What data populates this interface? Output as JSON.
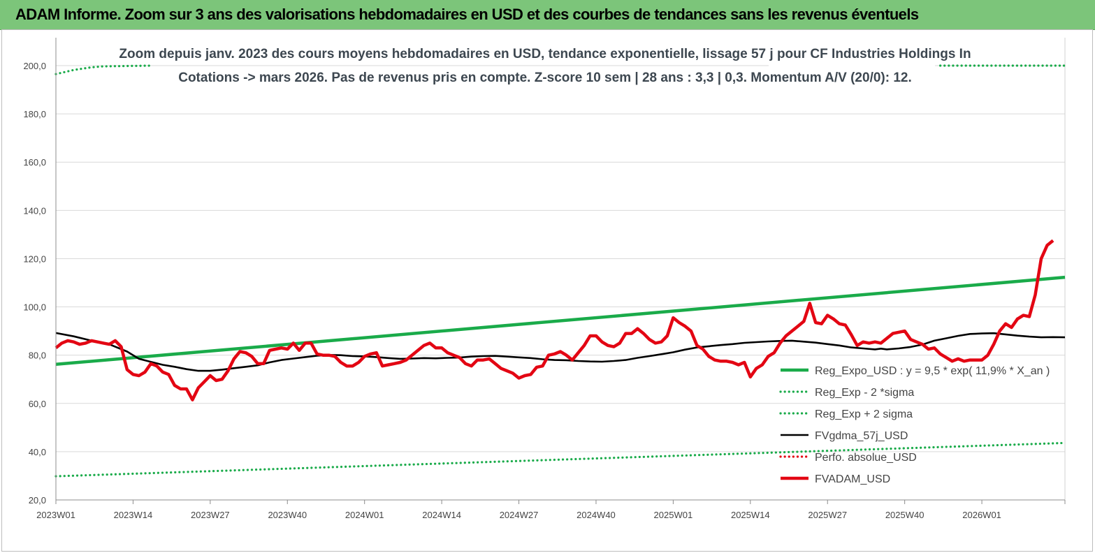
{
  "banner": {
    "title": "ADAM Informe. Zoom sur 3 ans des valorisations hebdomadaires en USD et des courbes de tendances sans les revenus éventuels"
  },
  "colors": {
    "banner_bg": "#7cc57a",
    "reg_expo": "#1aab4a",
    "bands": "#1aab4a",
    "fvgdma": "#000000",
    "perfo": "#e30613",
    "fvadam": "#e30613"
  },
  "chart_data": {
    "type": "line",
    "title": [
      "Zoom depuis janv. 2023 des cours moyens hebdomadaires en USD, tendance exponentielle, lissage 57 j pour CF Industries Holdings In",
      "Cotations -> mars 2026. Pas de revenus pris en compte. Z-score 10 sem | 28 ans : 3,3 | 0,3. Momentum A/V (20/0): 12."
    ],
    "y_ticks": [
      "20,0",
      "40,0",
      "60,0",
      "80,0",
      "100,0",
      "120,0",
      "140,0",
      "160,0",
      "180,0",
      "200,0"
    ],
    "ylim": [
      20,
      200
    ],
    "x_ticks": [
      "2023W01",
      "2023W14",
      "2023W27",
      "2023W40",
      "2024W01",
      "2024W14",
      "2024W27",
      "2024W40",
      "2025W01",
      "2025W14",
      "2025W27",
      "2025W40",
      "2026W01"
    ],
    "x_tick_week_index": [
      0,
      13,
      26,
      39,
      52,
      65,
      78,
      91,
      104,
      117,
      130,
      143,
      156
    ],
    "week_count": 171,
    "grid": "horizontal",
    "legend_position": "bottom-right",
    "series": [
      {
        "name": "Reg_Expo_USD : y = 9,5 * exp( 11,9% *  X_an )",
        "style": "thick-solid",
        "color": "#1aab4a",
        "points": [
          [
            0,
            76.2
          ],
          [
            170,
            112.3
          ]
        ]
      },
      {
        "name": "Reg_Exp - 2 *sigma",
        "style": "dotted",
        "color": "#1aab4a",
        "points": [
          [
            0,
            29.8
          ],
          [
            170,
            43.6
          ]
        ]
      },
      {
        "name": "Reg_Exp + 2 sigma",
        "style": "dotted",
        "color": "#1aab4a",
        "points": [
          [
            0,
            196.5
          ],
          [
            3,
            198.2
          ],
          [
            6,
            199.3
          ],
          [
            8,
            199.7
          ],
          [
            16,
            200
          ]
        ],
        "points_right": [
          [
            149,
            200
          ],
          [
            170,
            200
          ]
        ]
      },
      {
        "name": "FVgdma_57j_USD",
        "style": "solid",
        "color": "#000000",
        "points": [
          [
            0,
            89.2
          ],
          [
            3,
            87.8
          ],
          [
            6,
            86
          ],
          [
            9,
            84.5
          ],
          [
            12,
            81.5
          ],
          [
            14,
            78.5
          ],
          [
            16,
            77.2
          ],
          [
            18,
            76
          ],
          [
            20,
            75.2
          ],
          [
            22,
            74.2
          ],
          [
            24,
            73.5
          ],
          [
            26,
            73.5
          ],
          [
            28,
            74
          ],
          [
            30,
            74.6
          ],
          [
            32,
            75.2
          ],
          [
            34,
            75.8
          ],
          [
            36,
            77
          ],
          [
            38,
            78
          ],
          [
            40,
            78.6
          ],
          [
            42,
            79.2
          ],
          [
            44,
            79.8
          ],
          [
            46,
            80.1
          ],
          [
            48,
            80
          ],
          [
            50,
            79.6
          ],
          [
            52,
            79.5
          ],
          [
            54,
            79.2
          ],
          [
            56,
            78.8
          ],
          [
            58,
            78.5
          ],
          [
            60,
            78.6
          ],
          [
            62,
            78.8
          ],
          [
            64,
            78.7
          ],
          [
            66,
            78.9
          ],
          [
            68,
            79
          ],
          [
            70,
            79.4
          ],
          [
            72,
            79.6
          ],
          [
            74,
            79.7
          ],
          [
            76,
            79.4
          ],
          [
            78,
            79.1
          ],
          [
            80,
            78.8
          ],
          [
            82,
            78.3
          ],
          [
            84,
            78
          ],
          [
            86,
            77.9
          ],
          [
            88,
            77.6
          ],
          [
            90,
            77.4
          ],
          [
            92,
            77.3
          ],
          [
            94,
            77.6
          ],
          [
            96,
            78
          ],
          [
            98,
            78.9
          ],
          [
            100,
            79.6
          ],
          [
            102,
            80.4
          ],
          [
            104,
            81.2
          ],
          [
            106,
            82.3
          ],
          [
            108,
            83.2
          ],
          [
            110,
            83.7
          ],
          [
            112,
            84.2
          ],
          [
            114,
            84.6
          ],
          [
            116,
            85.1
          ],
          [
            118,
            85.4
          ],
          [
            120,
            85.7
          ],
          [
            122,
            85.9
          ],
          [
            124,
            86
          ],
          [
            126,
            85.6
          ],
          [
            128,
            85.2
          ],
          [
            130,
            84.6
          ],
          [
            132,
            84
          ],
          [
            134,
            83.2
          ],
          [
            136,
            82.8
          ],
          [
            138,
            82.4
          ],
          [
            139,
            82.7
          ],
          [
            140,
            82.4
          ],
          [
            142,
            82.8
          ],
          [
            144,
            83.4
          ],
          [
            146,
            84.4
          ],
          [
            148,
            86
          ],
          [
            150,
            87
          ],
          [
            152,
            88
          ],
          [
            154,
            88.8
          ],
          [
            156,
            89
          ],
          [
            158,
            89.1
          ],
          [
            160,
            88.6
          ],
          [
            162,
            88.1
          ],
          [
            164,
            87.7
          ],
          [
            166,
            87.4
          ],
          [
            168,
            87.5
          ],
          [
            170,
            87.4
          ]
        ]
      },
      {
        "name": "Perfo. absolue_USD",
        "style": "dotted",
        "color": "#e30613",
        "points": []
      },
      {
        "name": "FVADAM_USD",
        "style": "thick-solid",
        "color": "#e30613",
        "points": [
          [
            0,
            83
          ],
          [
            1,
            85
          ],
          [
            2,
            86
          ],
          [
            3,
            85.5
          ],
          [
            4,
            84.5
          ],
          [
            5,
            85
          ],
          [
            6,
            86
          ],
          [
            7,
            85.5
          ],
          [
            8,
            85
          ],
          [
            9,
            84.5
          ],
          [
            10,
            86
          ],
          [
            11,
            83.5
          ],
          [
            12,
            74
          ],
          [
            13,
            72
          ],
          [
            14,
            71.5
          ],
          [
            15,
            73
          ],
          [
            16,
            76.5
          ],
          [
            17,
            75.5
          ],
          [
            18,
            73
          ],
          [
            19,
            72
          ],
          [
            20,
            67.5
          ],
          [
            21,
            66
          ],
          [
            22,
            66
          ],
          [
            23,
            61.5
          ],
          [
            24,
            66.5
          ],
          [
            25,
            69
          ],
          [
            26,
            71.5
          ],
          [
            27,
            69.5
          ],
          [
            28,
            70
          ],
          [
            29,
            73.5
          ],
          [
            30,
            78.5
          ],
          [
            31,
            81.5
          ],
          [
            32,
            81
          ],
          [
            33,
            79.5
          ],
          [
            34,
            76.5
          ],
          [
            35,
            76.5
          ],
          [
            36,
            82
          ],
          [
            37,
            82.5
          ],
          [
            38,
            83
          ],
          [
            39,
            82.5
          ],
          [
            40,
            85
          ],
          [
            41,
            82
          ],
          [
            42,
            85
          ],
          [
            43,
            85
          ],
          [
            44,
            80.5
          ],
          [
            45,
            80
          ],
          [
            46,
            80
          ],
          [
            47,
            79.5
          ],
          [
            48,
            77
          ],
          [
            49,
            75.5
          ],
          [
            50,
            75.5
          ],
          [
            51,
            77
          ],
          [
            52,
            79.5
          ],
          [
            53,
            80.5
          ],
          [
            54,
            81
          ],
          [
            55,
            75.5
          ],
          [
            56,
            76
          ],
          [
            57,
            76.5
          ],
          [
            58,
            77
          ],
          [
            59,
            78
          ],
          [
            60,
            80
          ],
          [
            61,
            82
          ],
          [
            62,
            84
          ],
          [
            63,
            85
          ],
          [
            64,
            83
          ],
          [
            65,
            83
          ],
          [
            66,
            81
          ],
          [
            67,
            80
          ],
          [
            68,
            79
          ],
          [
            69,
            76.5
          ],
          [
            70,
            75.5
          ],
          [
            71,
            78
          ],
          [
            72,
            78
          ],
          [
            73,
            78.5
          ],
          [
            74,
            76.5
          ],
          [
            75,
            74.5
          ],
          [
            76,
            73.5
          ],
          [
            77,
            72.5
          ],
          [
            78,
            70.5
          ],
          [
            79,
            71.5
          ],
          [
            80,
            72
          ],
          [
            81,
            75
          ],
          [
            82,
            75.5
          ],
          [
            83,
            80
          ],
          [
            84,
            80.5
          ],
          [
            85,
            81.5
          ],
          [
            86,
            80
          ],
          [
            87,
            78
          ],
          [
            88,
            81
          ],
          [
            89,
            84
          ],
          [
            90,
            88
          ],
          [
            91,
            88
          ],
          [
            92,
            85.5
          ],
          [
            93,
            84
          ],
          [
            94,
            83.5
          ],
          [
            95,
            85
          ],
          [
            96,
            89
          ],
          [
            97,
            89
          ],
          [
            98,
            91
          ],
          [
            99,
            89
          ],
          [
            100,
            86.5
          ],
          [
            101,
            85
          ],
          [
            102,
            85.5
          ],
          [
            103,
            88
          ],
          [
            104,
            95.5
          ],
          [
            105,
            93.5
          ],
          [
            106,
            92
          ],
          [
            107,
            90
          ],
          [
            108,
            84
          ],
          [
            109,
            82.5
          ],
          [
            110,
            79.5
          ],
          [
            111,
            78
          ],
          [
            112,
            77.5
          ],
          [
            113,
            77.5
          ],
          [
            114,
            77
          ],
          [
            115,
            76
          ],
          [
            116,
            77
          ],
          [
            117,
            71
          ],
          [
            118,
            74.5
          ],
          [
            119,
            76
          ],
          [
            120,
            79.5
          ],
          [
            121,
            81
          ],
          [
            122,
            85
          ],
          [
            123,
            88
          ],
          [
            124,
            90
          ],
          [
            125,
            92
          ],
          [
            126,
            94
          ],
          [
            127,
            101.5
          ],
          [
            128,
            93.5
          ],
          [
            129,
            93
          ],
          [
            130,
            96.5
          ],
          [
            131,
            95
          ],
          [
            132,
            93
          ],
          [
            133,
            92.5
          ],
          [
            134,
            88.5
          ],
          [
            135,
            84
          ],
          [
            136,
            85.5
          ],
          [
            137,
            85
          ],
          [
            138,
            85.5
          ],
          [
            139,
            85
          ],
          [
            140,
            87
          ],
          [
            141,
            89
          ],
          [
            142,
            89.5
          ],
          [
            143,
            90
          ],
          [
            144,
            86.5
          ],
          [
            145,
            85.5
          ],
          [
            146,
            84.5
          ],
          [
            147,
            82.5
          ],
          [
            148,
            83
          ],
          [
            149,
            80.5
          ],
          [
            150,
            79
          ],
          [
            151,
            77.5
          ],
          [
            152,
            78.5
          ],
          [
            153,
            77.5
          ],
          [
            154,
            78
          ],
          [
            155,
            78
          ],
          [
            156,
            78
          ],
          [
            157,
            80
          ],
          [
            158,
            84.5
          ],
          [
            159,
            90
          ],
          [
            160,
            93
          ],
          [
            161,
            91.5
          ],
          [
            162,
            95
          ],
          [
            163,
            96.5
          ],
          [
            164,
            96
          ],
          [
            165,
            105
          ],
          [
            166,
            120
          ],
          [
            167,
            125.5
          ],
          [
            168,
            127.5
          ]
        ]
      }
    ]
  }
}
